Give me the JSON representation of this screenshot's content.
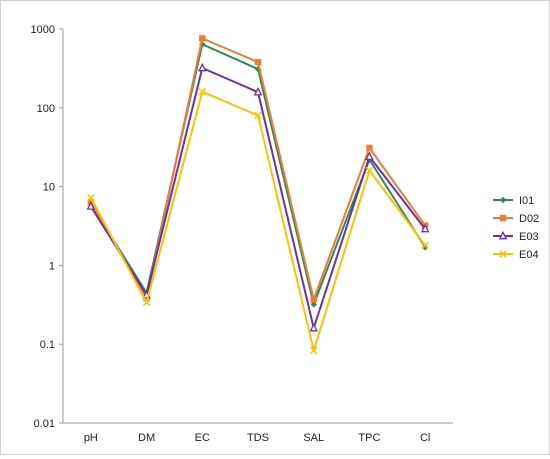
{
  "chart_data": {
    "type": "line",
    "categories": [
      "pH",
      "DM",
      "EC",
      "TDS",
      "SAL",
      "TPC",
      "Cl"
    ],
    "y_scale": "log",
    "ylim": [
      0.01,
      1000
    ],
    "yticks": [
      {
        "value": 0.01,
        "label": "0.01"
      },
      {
        "value": 0.1,
        "label": "0.1"
      },
      {
        "value": 1,
        "label": "1"
      },
      {
        "value": 10,
        "label": "10"
      },
      {
        "value": 100,
        "label": "100"
      },
      {
        "value": 1000,
        "label": "1000"
      }
    ],
    "grid": false,
    "legend_position": "right",
    "series": [
      {
        "name": "I01",
        "color": "#2e8b57",
        "marker": "diamond",
        "values": [
          6.0,
          0.45,
          640,
          310,
          0.32,
          22,
          1.7
        ]
      },
      {
        "name": "D02",
        "color": "#ed7d31",
        "marker": "square",
        "values": [
          6.3,
          0.38,
          760,
          380,
          0.37,
          31,
          3.2
        ]
      },
      {
        "name": "E03",
        "color": "#7030a0",
        "marker": "triangle",
        "values": [
          5.6,
          0.42,
          320,
          158,
          0.16,
          24,
          2.9
        ]
      },
      {
        "name": "E04",
        "color": "#ffc000",
        "marker": "x",
        "values": [
          7.2,
          0.34,
          160,
          80,
          0.083,
          16,
          1.8
        ]
      }
    ]
  }
}
